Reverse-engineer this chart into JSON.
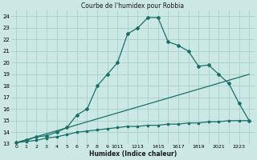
{
  "title": "Courbe de l'humidex pour Robbia",
  "xlabel": "Humidex (Indice chaleur)",
  "bg_color": "#cce8e4",
  "grid_color": "#aad4cc",
  "line_color": "#1a7068",
  "xlim": [
    -0.5,
    23.5
  ],
  "ylim": [
    13,
    24.5
  ],
  "xticks": [
    0,
    1,
    2,
    3,
    4,
    5,
    6,
    7,
    8,
    9,
    10,
    11,
    12,
    13,
    14,
    15,
    16,
    17,
    18,
    19,
    20,
    21,
    22,
    23
  ],
  "yticks": [
    13,
    14,
    15,
    16,
    17,
    18,
    19,
    20,
    21,
    22,
    23,
    24
  ],
  "xtick_labels": [
    "0",
    "1",
    "2",
    "3",
    "4",
    "5",
    "6",
    "7",
    "8",
    "9",
    "1011",
    "1213",
    "1415",
    "1617",
    "1819",
    "2021",
    "2223",
    "",
    "",
    "",
    "",
    "",
    "",
    ""
  ],
  "curve1_x": [
    0,
    1,
    2,
    3,
    4,
    5,
    6,
    7,
    8,
    9,
    10,
    11,
    12,
    13,
    14,
    15,
    16,
    17,
    18,
    19,
    20,
    21,
    22,
    23
  ],
  "curve1_y": [
    13.1,
    13.3,
    13.6,
    13.7,
    14.0,
    14.4,
    15.5,
    16.0,
    18.0,
    19.0,
    20.0,
    22.5,
    23.0,
    23.9,
    23.9,
    21.8,
    21.5,
    21.0,
    19.7,
    19.8,
    19.0,
    18.2,
    16.5,
    15.0
  ],
  "curve2_x": [
    0,
    23
  ],
  "curve2_y": [
    13.1,
    19.0
  ],
  "curve3_x": [
    0,
    1,
    2,
    3,
    4,
    5,
    6,
    7,
    8,
    9,
    10,
    11,
    12,
    13,
    14,
    15,
    16,
    17,
    18,
    19,
    20,
    21,
    22,
    23
  ],
  "curve3_y": [
    13.1,
    13.2,
    13.3,
    13.5,
    13.6,
    13.8,
    14.0,
    14.1,
    14.2,
    14.3,
    14.4,
    14.5,
    14.5,
    14.6,
    14.6,
    14.7,
    14.7,
    14.8,
    14.8,
    14.9,
    14.9,
    15.0,
    15.0,
    15.0
  ]
}
